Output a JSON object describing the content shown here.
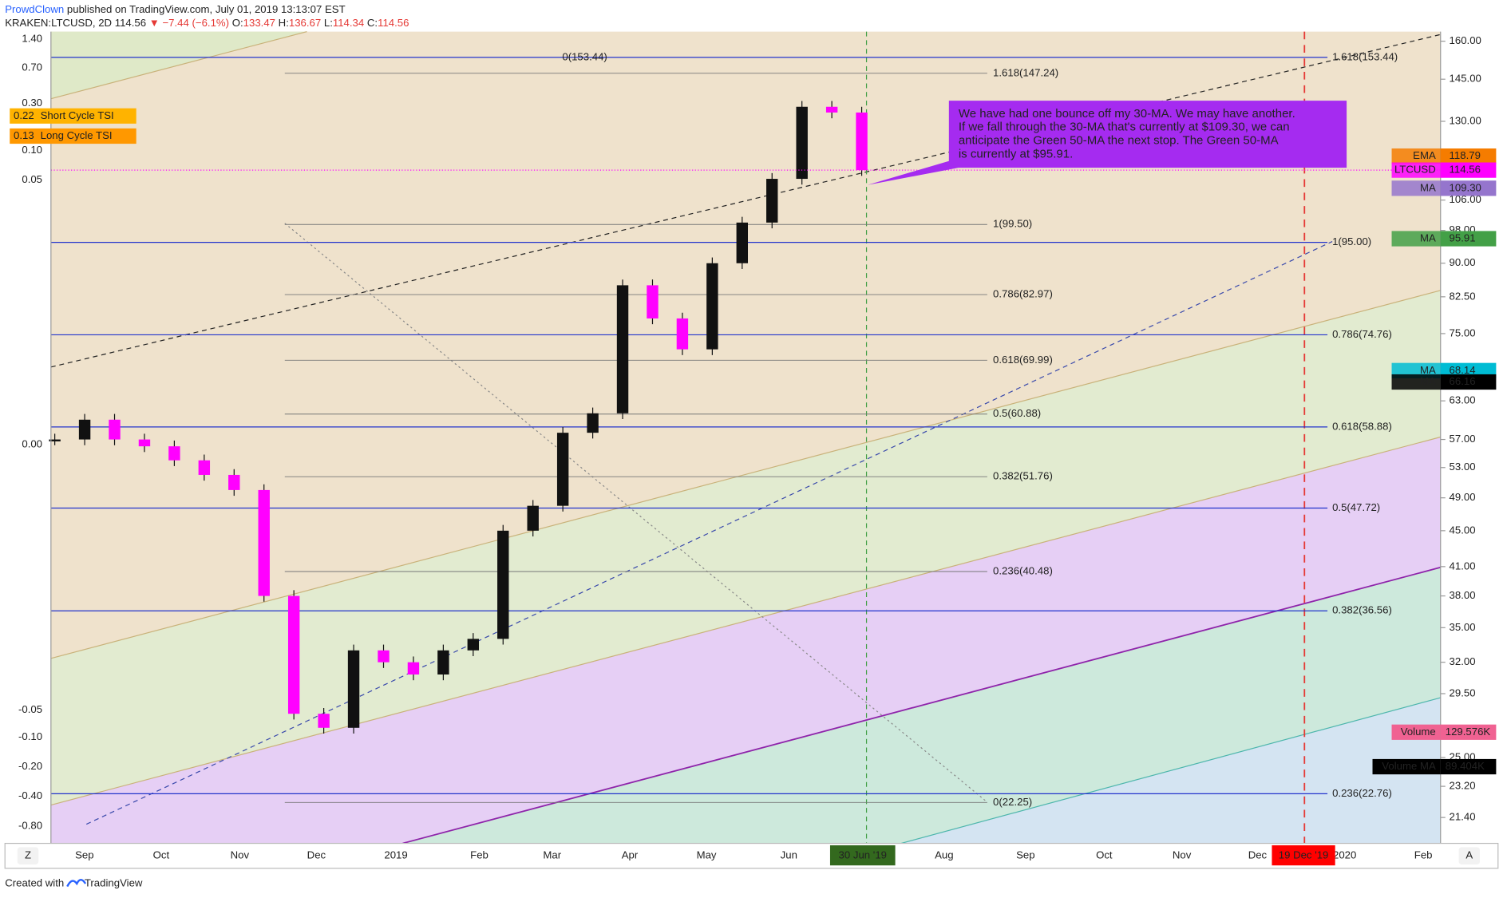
{
  "header": {
    "user": "ProwdClown",
    "published": "published on TradingView.com, July 01, 2019 13:13:07 EST",
    "symbol": "KRAKEN:LTCUSD, 2D",
    "last": "114.56",
    "change": "▼ −7.44 (−6.1%)",
    "ohlc": [
      "O:",
      "133.47",
      "H:",
      "136.67",
      "L:",
      "114.34",
      "C:",
      "114.56"
    ]
  },
  "price_axis": {
    "ylim": [
      21.4,
      160
    ],
    "log_scale": true,
    "yticks": [
      {
        "value": 160,
        "label": "160.00"
      },
      {
        "value": 145,
        "label": "145.00"
      },
      {
        "value": 130,
        "label": "130.00"
      },
      {
        "value": 106,
        "label": "106.00"
      },
      {
        "value": 98,
        "label": "98.00"
      },
      {
        "value": 90,
        "label": "90.00"
      },
      {
        "value": 82.5,
        "label": "82.50"
      },
      {
        "value": 75,
        "label": "75.00"
      },
      {
        "value": 63,
        "label": "63.00"
      },
      {
        "value": 57,
        "label": "57.00"
      },
      {
        "value": 53,
        "label": "53.00"
      },
      {
        "value": 49,
        "label": "49.00"
      },
      {
        "value": 45,
        "label": "45.00"
      },
      {
        "value": 41,
        "label": "41.00"
      },
      {
        "value": 38,
        "label": "38.00"
      },
      {
        "value": 35,
        "label": "35.00"
      },
      {
        "value": 32,
        "label": "32.00"
      },
      {
        "value": 29.5,
        "label": "29.50"
      },
      {
        "value": 25,
        "label": "25.00"
      },
      {
        "value": 23.2,
        "label": "23.20"
      },
      {
        "value": 21.4,
        "label": "21.40"
      }
    ]
  },
  "tsi_axis": {
    "yticks": [
      {
        "value": 1.4,
        "label": "1.40"
      },
      {
        "value": 0.7,
        "label": "0.70"
      },
      {
        "value": 0.3,
        "label": "0.30"
      },
      {
        "value": 0.1,
        "label": "0.10"
      },
      {
        "value": 0.05,
        "label": "0.05"
      },
      {
        "value": 0,
        "label": "0.00"
      },
      {
        "value": -0.05,
        "label": "-0.05"
      },
      {
        "value": -0.1,
        "label": "-0.10"
      },
      {
        "value": -0.2,
        "label": "-0.20"
      },
      {
        "value": -0.4,
        "label": "-0.40"
      },
      {
        "value": -0.8,
        "label": "-0.80"
      }
    ],
    "tags": [
      {
        "value": 0.22,
        "name": "Short Cycle TSI"
      },
      {
        "value": 0.13,
        "name": "Long Cycle TSI"
      }
    ]
  },
  "time_axis": {
    "labels": [
      "Sep",
      "Oct",
      "Nov",
      "Dec",
      "2019",
      "Feb",
      "Mar",
      "Apr",
      "May",
      "Jun",
      "Aug",
      "Sep",
      "Oct",
      "Nov",
      "Dec",
      "2020",
      "Feb"
    ],
    "current": "30 Jun '19",
    "marker": "19 Dec '19"
  },
  "closes": [
    57,
    60,
    57,
    56,
    54,
    52,
    50,
    38,
    28,
    27,
    33,
    32,
    31,
    33,
    34,
    45,
    48,
    58,
    61,
    85,
    78,
    72,
    90,
    100,
    112,
    135,
    133,
    114.56
  ],
  "fib_left": [
    {
      "label": "1.618(147.24)",
      "price": 147.24
    },
    {
      "label": "1(99.50)",
      "price": 99.5
    },
    {
      "label": "0.786(82.97)",
      "price": 82.97
    },
    {
      "label": "0.618(69.99)",
      "price": 69.99
    },
    {
      "label": "0.5(60.88)",
      "price": 60.88
    },
    {
      "label": "0.382(51.76)",
      "price": 51.76
    },
    {
      "label": "0.236(40.48)",
      "price": 40.48
    },
    {
      "label": "0(22.25)",
      "price": 22.25
    }
  ],
  "fib_right": [
    {
      "label": "1.618(153.44)",
      "price": 153.44
    },
    {
      "label": "1(95.00)",
      "price": 95
    },
    {
      "label": "0.786(74.76)",
      "price": 74.76
    },
    {
      "label": "0.618(58.88)",
      "price": 58.88
    },
    {
      "label": "0.5(47.72)",
      "price": 47.72
    },
    {
      "label": "0.382(36.56)",
      "price": 36.56
    },
    {
      "label": "0.236(22.76)",
      "price": 22.76
    }
  ],
  "fib_top_label": "0(153.44)",
  "price_tags": [
    {
      "name": "EMA",
      "value": 118.79,
      "color": "#f57c00"
    },
    {
      "name": "LTCUSD",
      "value": 114.56,
      "color": "#ff00ff"
    },
    {
      "name": "MA",
      "value": 109.3,
      "value_label": "109.30",
      "color": "#9575cd"
    },
    {
      "name": "MA",
      "value": 95.91,
      "color": "#43a047"
    },
    {
      "name": "MA",
      "value": 68.14,
      "color": "#00bcd4"
    },
    {
      "name": "MA",
      "value": 66.16,
      "color": "#000000"
    }
  ],
  "volume_tags": [
    {
      "name": "Volume",
      "value": 129576,
      "value_label": "129.576K",
      "color": "#f06292"
    },
    {
      "name": "Volume MA",
      "value": 89404,
      "value_label": "89.404K",
      "color": "#000000"
    }
  ],
  "annotation": [
    "We have had one bounce off my 30-MA.  We may have another.",
    "If we fall through the 30-MA that's currently at $109.30, we can",
    "anticipate the Green 50-MA the next stop.  The Green 50-MA",
    "is currently at $95.91."
  ],
  "footer": {
    "created": "Created with",
    "brand": "TradingView"
  },
  "buttons": [
    "Z",
    "A"
  ]
}
